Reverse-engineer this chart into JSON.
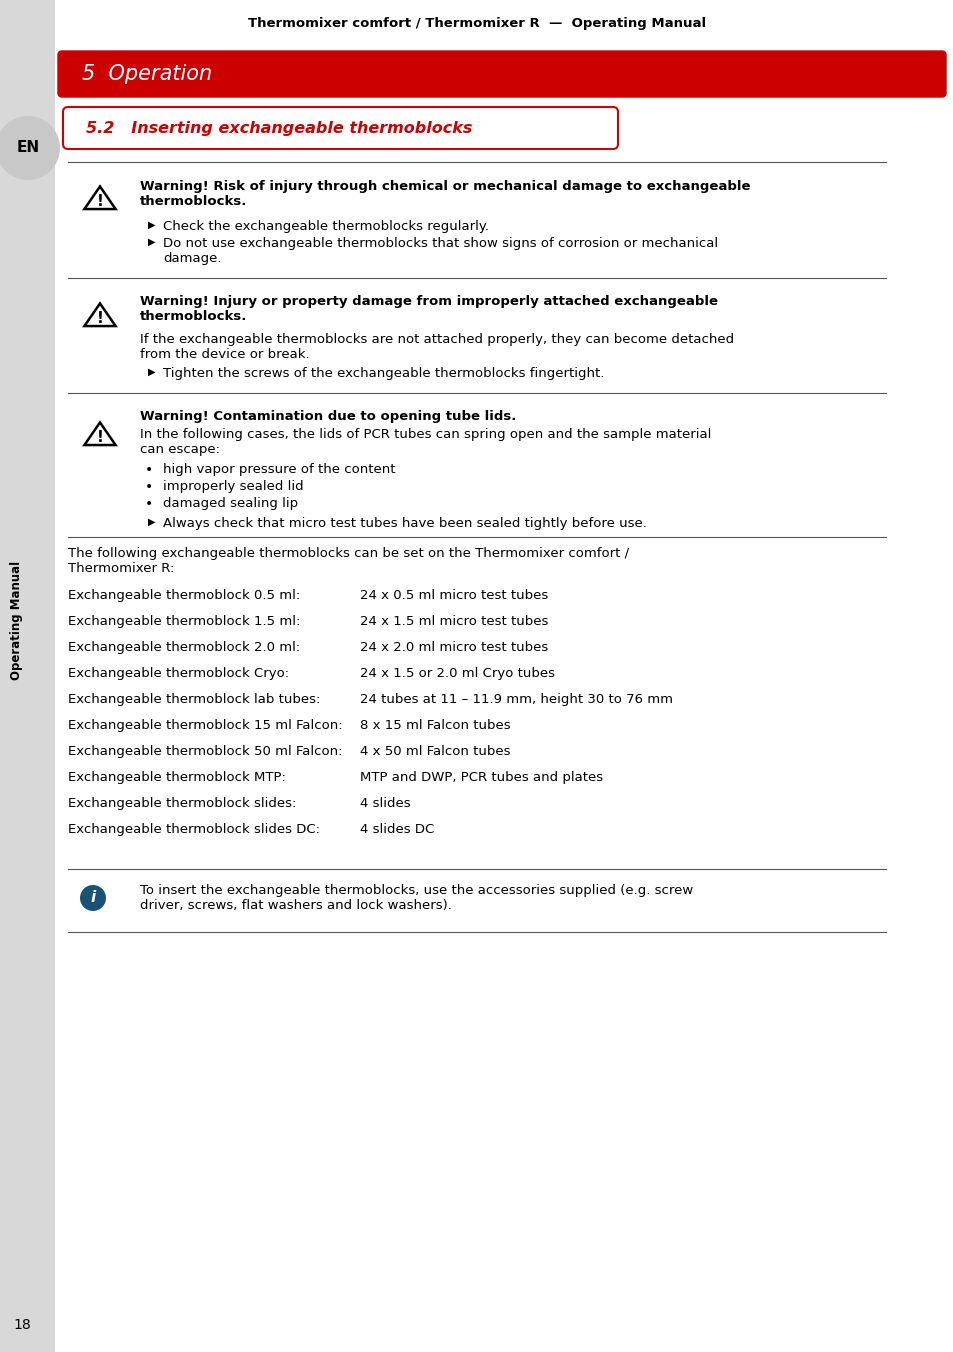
{
  "page_title": "Thermomixer comfort / Thermomixer R  —  Operating Manual",
  "section_title": "5  Operation",
  "subsection": "5.2   Inserting exchangeable thermoblocks",
  "sidebar_text": "Operating Manual",
  "en_label": "EN",
  "page_number": "18",
  "warning1_bold": "Warning! Risk of injury through chemical or mechanical damage to exchangeable\nthermoblocks.",
  "warning1_bullets": [
    "Check the exchangeable thermoblocks regularly.",
    "Do not use exchangeable thermoblocks that show signs of corrosion or mechanical\ndamage."
  ],
  "warning2_bold": "Warning! Injury or property damage from improperly attached exchangeable\nthermoblocks.",
  "warning2_body": "If the exchangeable thermoblocks are not attached properly, they can become detached\nfrom the device or break.",
  "warning2_bullets": [
    "Tighten the screws of the exchangeable thermoblocks fingertight."
  ],
  "warning3_bold": "Warning! Contamination due to opening tube lids.",
  "warning3_body": "In the following cases, the lids of PCR tubes can spring open and the sample material\ncan escape:",
  "warning3_bullets_round": [
    "high vapor pressure of the content",
    "improperly sealed lid",
    "damaged sealing lip"
  ],
  "warning3_arrow_bullet": "Always check that micro test tubes have been sealed tightly before use.",
  "intro_text": "The following exchangeable thermoblocks can be set on the Thermomixer comfort /\nThermomixer R:",
  "table_rows": [
    [
      "Exchangeable thermoblock 0.5 ml:",
      "24 x 0.5 ml micro test tubes"
    ],
    [
      "Exchangeable thermoblock 1.5 ml:",
      "24 x 1.5 ml micro test tubes"
    ],
    [
      "Exchangeable thermoblock 2.0 ml:",
      "24 x 2.0 ml micro test tubes"
    ],
    [
      "Exchangeable thermoblock Cryo:",
      "24 x 1.5 or 2.0 ml Cryo tubes"
    ],
    [
      "Exchangeable thermoblock lab tubes:",
      "24 tubes at 11 – 11.9 mm, height 30 to 76 mm"
    ],
    [
      "Exchangeable thermoblock 15 ml Falcon:",
      "8 x 15 ml Falcon tubes"
    ],
    [
      "Exchangeable thermoblock 50 ml Falcon:",
      "4 x 50 ml Falcon tubes"
    ],
    [
      "Exchangeable thermoblock MTP:",
      "MTP and DWP, PCR tubes and plates"
    ],
    [
      "Exchangeable thermoblock slides:",
      "4 slides"
    ],
    [
      "Exchangeable thermoblock slides DC:",
      "4 slides DC"
    ]
  ],
  "info_text": "To insert the exchangeable thermoblocks, use the accessories supplied (e.g. screw\ndriver, screws, flat washers and lock washers).",
  "bg_color": "#ffffff",
  "red_color": "#cc0000",
  "section_text_color": "#ffffff",
  "subsection_border_color": "#cc0000",
  "subsection_text_color": "#cc0000",
  "sidebar_bg": "#d8d8d8",
  "info_circle_color": "#1a5276"
}
